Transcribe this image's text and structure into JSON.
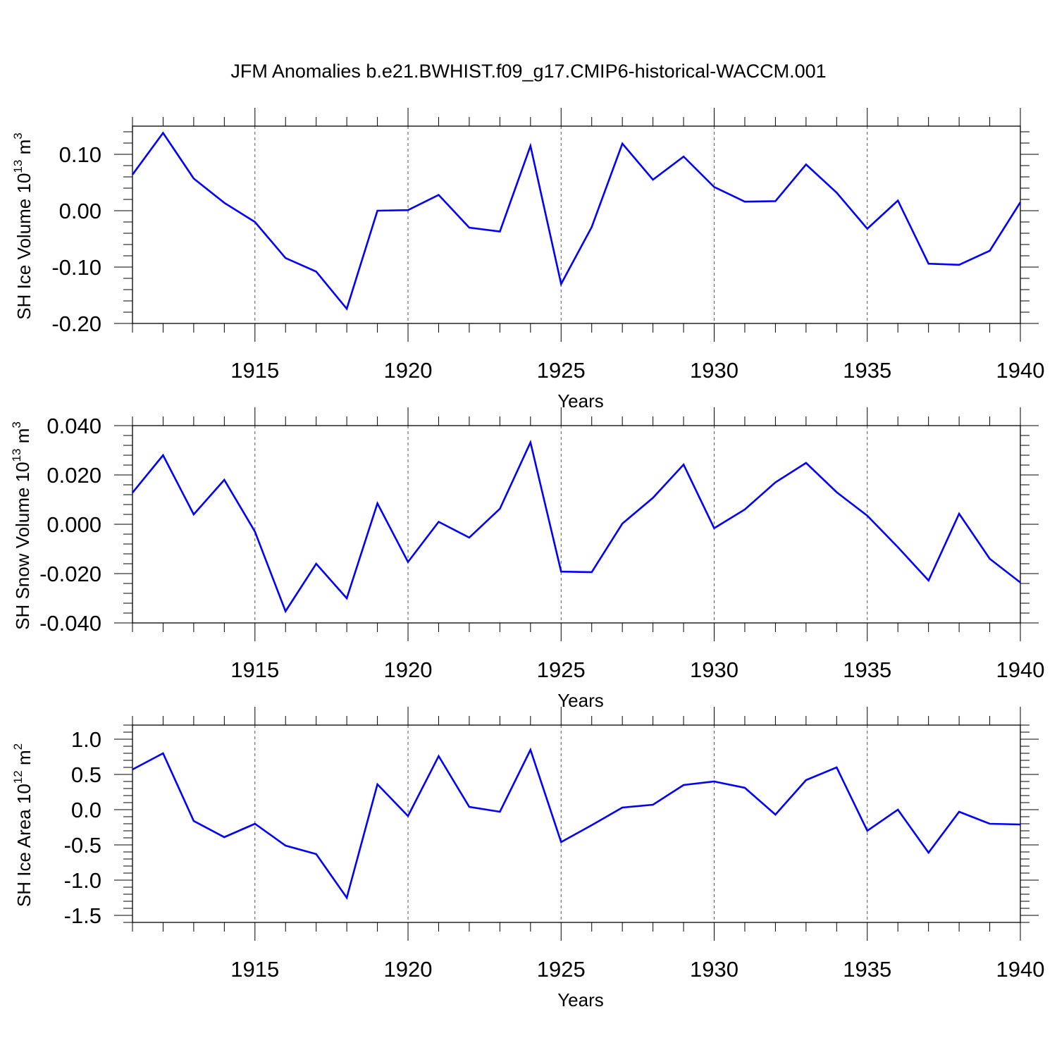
{
  "title": "JFM Anomalies b.e21.BWHIST.f09_g17.CMIP6-historical-WACCM.001",
  "colors": {
    "line": "#0000ff",
    "axis": "#000000",
    "grid": "#555555"
  },
  "chart_data": [
    {
      "type": "line",
      "ylabel": "SH Ice Volume 10",
      "ylabel_exp": "13",
      "ylabel_unit": " m",
      "ylabel_unit_exp": "3",
      "xlabel": "Years",
      "xlim": [
        1911,
        1940
      ],
      "ylim": [
        -0.2,
        0.15
      ],
      "yticks": [
        -0.2,
        -0.1,
        0.0,
        0.1
      ],
      "ytick_labels": [
        "-0.20",
        "-0.10",
        "0.00",
        "0.10"
      ],
      "xticks": [
        1915,
        1920,
        1925,
        1930,
        1935,
        1940
      ],
      "xtick_labels": [
        "1915",
        "1920",
        "1925",
        "1930",
        "1935",
        "1940"
      ],
      "grid": "vertical dashed at labeled years",
      "x": [
        1911,
        1912,
        1913,
        1914,
        1915,
        1916,
        1917,
        1918,
        1919,
        1920,
        1921,
        1922,
        1923,
        1924,
        1925,
        1926,
        1927,
        1928,
        1929,
        1930,
        1931,
        1932,
        1933,
        1934,
        1935,
        1936,
        1937,
        1938,
        1939,
        1940
      ],
      "series": [
        {
          "values": [
            0.064,
            0.138,
            0.057,
            0.014,
            -0.02,
            -0.084,
            -0.108,
            -0.174,
            0.0,
            0.001,
            0.028,
            -0.03,
            -0.037,
            0.115,
            -0.13,
            -0.029,
            0.119,
            0.055,
            0.096,
            0.042,
            0.016,
            0.017,
            0.082,
            0.032,
            -0.032,
            0.018,
            -0.094,
            -0.096,
            -0.071,
            0.015
          ]
        }
      ]
    },
    {
      "type": "line",
      "ylabel": "SH Snow Volume 10",
      "ylabel_exp": "13",
      "ylabel_unit": " m",
      "ylabel_unit_exp": "3",
      "xlabel": "Years",
      "xlim": [
        1911,
        1940
      ],
      "ylim": [
        -0.04,
        0.04
      ],
      "yticks": [
        -0.04,
        -0.02,
        0.0,
        0.02,
        0.04
      ],
      "ytick_labels": [
        "-0.040",
        "-0.020",
        "0.000",
        "0.020",
        "0.040"
      ],
      "xticks": [
        1915,
        1920,
        1925,
        1930,
        1935,
        1940
      ],
      "xtick_labels": [
        "1915",
        "1920",
        "1925",
        "1930",
        "1935",
        "1940"
      ],
      "grid": "vertical dashed at labeled years",
      "x": [
        1911,
        1912,
        1913,
        1914,
        1915,
        1916,
        1917,
        1918,
        1919,
        1920,
        1921,
        1922,
        1923,
        1924,
        1925,
        1926,
        1927,
        1928,
        1929,
        1930,
        1931,
        1932,
        1933,
        1934,
        1935,
        1936,
        1937,
        1938,
        1939,
        1940
      ],
      "series": [
        {
          "values": [
            0.0128,
            0.028,
            0.004,
            0.018,
            -0.003,
            -0.0353,
            -0.016,
            -0.03,
            0.0085,
            -0.0153,
            0.001,
            -0.0054,
            0.0063,
            0.0332,
            -0.0192,
            -0.0194,
            0.0003,
            0.0107,
            0.0242,
            -0.0016,
            0.006,
            0.017,
            0.0249,
            0.013,
            0.0035,
            -0.0093,
            -0.0228,
            0.0043,
            -0.014,
            -0.0236
          ]
        }
      ]
    },
    {
      "type": "line",
      "ylabel": "SH Ice Area 10",
      "ylabel_exp": "12",
      "ylabel_unit": " m",
      "ylabel_unit_exp": "2",
      "xlabel": "Years",
      "xlim": [
        1911,
        1940
      ],
      "ylim": [
        -1.6,
        1.2
      ],
      "yticks": [
        -1.5,
        -1.0,
        -0.5,
        0.0,
        0.5,
        1.0
      ],
      "ytick_labels": [
        "-1.5",
        "-1.0",
        "-0.5",
        "0.0",
        "0.5",
        "1.0"
      ],
      "xticks": [
        1915,
        1920,
        1925,
        1930,
        1935,
        1940
      ],
      "xtick_labels": [
        "1915",
        "1920",
        "1925",
        "1930",
        "1935",
        "1940"
      ],
      "grid": "vertical dashed at labeled years",
      "x": [
        1911,
        1912,
        1913,
        1914,
        1915,
        1916,
        1917,
        1918,
        1919,
        1920,
        1921,
        1922,
        1923,
        1924,
        1925,
        1926,
        1927,
        1928,
        1929,
        1930,
        1931,
        1932,
        1933,
        1934,
        1935,
        1936,
        1937,
        1938,
        1939,
        1940
      ],
      "series": [
        {
          "values": [
            0.57,
            0.8,
            -0.16,
            -0.39,
            -0.2,
            -0.51,
            -0.63,
            -1.25,
            0.36,
            -0.09,
            0.76,
            0.04,
            -0.03,
            0.85,
            -0.46,
            -0.22,
            0.03,
            0.07,
            0.35,
            0.4,
            0.31,
            -0.07,
            0.42,
            0.6,
            -0.3,
            0.0,
            -0.61,
            -0.03,
            -0.2,
            -0.21
          ]
        }
      ]
    }
  ]
}
